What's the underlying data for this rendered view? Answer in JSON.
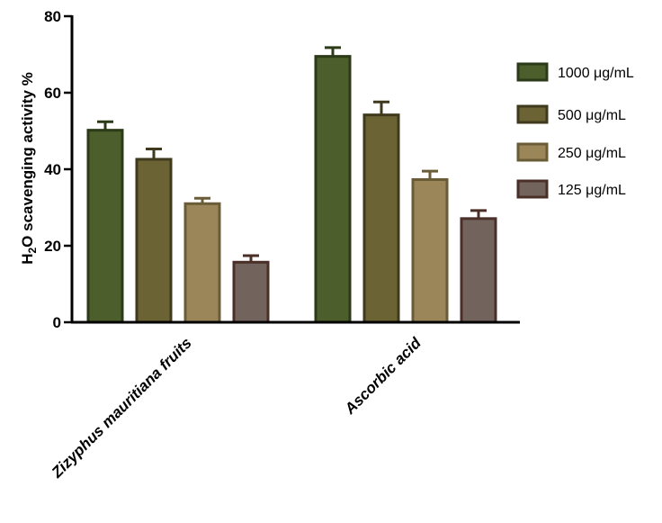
{
  "chart_data": {
    "type": "bar",
    "categories": [
      "Zizyphus mauritiana fruits",
      "Ascorbic acid"
    ],
    "series": [
      {
        "name": "1000 μg/mL",
        "values": [
          50.2,
          69.5
        ],
        "errors": [
          2.2,
          2.3
        ],
        "fill": "#4b5e2c",
        "stroke": "#2c3a17"
      },
      {
        "name": "500 μg/mL",
        "values": [
          42.6,
          54.2
        ],
        "errors": [
          2.7,
          3.4
        ],
        "fill": "#6c6334",
        "stroke": "#3f3a1d"
      },
      {
        "name": "250 μg/mL",
        "values": [
          31.0,
          37.3
        ],
        "errors": [
          1.4,
          2.2
        ],
        "fill": "#9a8658",
        "stroke": "#6a5c37"
      },
      {
        "name": "125 μg/mL",
        "values": [
          15.7,
          27.1
        ],
        "errors": [
          1.7,
          2.1
        ],
        "fill": "#72645c",
        "stroke": "#4a2f28"
      }
    ],
    "ylabel_main": "H",
    "ylabel_sub2": "2",
    "ylabel_mid": "O",
    "ylabel_rest": " scavenging activity %",
    "ylim": [
      0,
      80
    ],
    "yticks": [
      0,
      20,
      40,
      60,
      80
    ],
    "legend_position": "right"
  }
}
